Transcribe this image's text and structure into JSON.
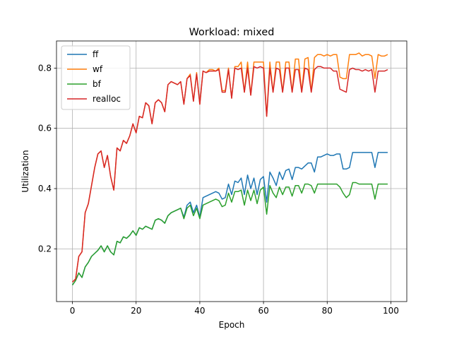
{
  "chart_data": {
    "type": "line",
    "title": "Workload: mixed",
    "xlabel": "Epoch",
    "ylabel": "Utilization",
    "xlim": [
      -5,
      105
    ],
    "ylim": [
      0.025,
      0.89
    ],
    "xticks": [
      0,
      20,
      40,
      60,
      80,
      100
    ],
    "yticks": [
      0.2,
      0.4,
      0.6,
      0.8
    ],
    "grid": true,
    "legend_position": "top-left",
    "series": [
      {
        "name": "ff",
        "color": "#1f77b4",
        "values": [
          0.08,
          0.095,
          0.12,
          0.105,
          0.14,
          0.155,
          0.175,
          0.185,
          0.195,
          0.21,
          0.19,
          0.21,
          0.19,
          0.18,
          0.225,
          0.22,
          0.24,
          0.235,
          0.245,
          0.26,
          0.245,
          0.27,
          0.265,
          0.275,
          0.27,
          0.265,
          0.295,
          0.3,
          0.295,
          0.285,
          0.31,
          0.32,
          0.325,
          0.33,
          0.335,
          0.305,
          0.345,
          0.355,
          0.32,
          0.345,
          0.305,
          0.37,
          0.375,
          0.38,
          0.385,
          0.39,
          0.385,
          0.365,
          0.37,
          0.415,
          0.38,
          0.425,
          0.42,
          0.435,
          0.38,
          0.445,
          0.4,
          0.435,
          0.38,
          0.43,
          0.44,
          0.355,
          0.455,
          0.435,
          0.41,
          0.455,
          0.43,
          0.46,
          0.465,
          0.43,
          0.47,
          0.47,
          0.465,
          0.475,
          0.485,
          0.485,
          0.455,
          0.505,
          0.505,
          0.51,
          0.515,
          0.51,
          0.51,
          0.515,
          0.515,
          0.465,
          0.465,
          0.47,
          0.52,
          0.52,
          0.52,
          0.52,
          0.52,
          0.52,
          0.52,
          0.47,
          0.52,
          0.52,
          0.52,
          0.52
        ]
      },
      {
        "name": "wf",
        "color": "#ff7f0e",
        "values": [
          0.09,
          0.1,
          0.175,
          0.19,
          0.32,
          0.35,
          0.41,
          0.47,
          0.515,
          0.525,
          0.47,
          0.51,
          0.44,
          0.395,
          0.535,
          0.525,
          0.56,
          0.55,
          0.575,
          0.615,
          0.585,
          0.64,
          0.635,
          0.685,
          0.675,
          0.615,
          0.685,
          0.695,
          0.685,
          0.655,
          0.745,
          0.755,
          0.75,
          0.745,
          0.755,
          0.68,
          0.765,
          0.78,
          0.69,
          0.785,
          0.68,
          0.79,
          0.785,
          0.795,
          0.795,
          0.79,
          0.8,
          0.725,
          0.725,
          0.8,
          0.7,
          0.805,
          0.805,
          0.82,
          0.72,
          0.82,
          0.71,
          0.82,
          0.82,
          0.82,
          0.82,
          0.64,
          0.82,
          0.72,
          0.82,
          0.82,
          0.72,
          0.82,
          0.82,
          0.72,
          0.83,
          0.83,
          0.72,
          0.83,
          0.835,
          0.72,
          0.835,
          0.845,
          0.845,
          0.84,
          0.845,
          0.84,
          0.845,
          0.845,
          0.77,
          0.765,
          0.765,
          0.845,
          0.845,
          0.845,
          0.85,
          0.84,
          0.845,
          0.845,
          0.84,
          0.765,
          0.845,
          0.84,
          0.84,
          0.845
        ]
      },
      {
        "name": "bf",
        "color": "#2ca02c",
        "values": [
          0.08,
          0.095,
          0.12,
          0.105,
          0.14,
          0.155,
          0.175,
          0.185,
          0.195,
          0.21,
          0.19,
          0.21,
          0.19,
          0.18,
          0.225,
          0.22,
          0.24,
          0.235,
          0.245,
          0.26,
          0.245,
          0.27,
          0.265,
          0.275,
          0.27,
          0.265,
          0.295,
          0.3,
          0.295,
          0.285,
          0.31,
          0.32,
          0.325,
          0.33,
          0.335,
          0.3,
          0.335,
          0.345,
          0.31,
          0.335,
          0.3,
          0.345,
          0.35,
          0.355,
          0.36,
          0.365,
          0.36,
          0.34,
          0.345,
          0.385,
          0.355,
          0.39,
          0.39,
          0.395,
          0.345,
          0.395,
          0.36,
          0.395,
          0.35,
          0.395,
          0.405,
          0.315,
          0.41,
          0.385,
          0.37,
          0.405,
          0.38,
          0.405,
          0.405,
          0.375,
          0.41,
          0.41,
          0.385,
          0.415,
          0.415,
          0.41,
          0.385,
          0.415,
          0.415,
          0.415,
          0.415,
          0.415,
          0.415,
          0.415,
          0.405,
          0.385,
          0.37,
          0.38,
          0.42,
          0.42,
          0.415,
          0.415,
          0.415,
          0.415,
          0.415,
          0.365,
          0.415,
          0.415,
          0.415,
          0.415
        ]
      },
      {
        "name": "realloc",
        "color": "#d62728",
        "values": [
          0.09,
          0.1,
          0.175,
          0.19,
          0.32,
          0.35,
          0.41,
          0.47,
          0.515,
          0.525,
          0.47,
          0.51,
          0.44,
          0.395,
          0.535,
          0.525,
          0.56,
          0.55,
          0.575,
          0.615,
          0.585,
          0.64,
          0.635,
          0.685,
          0.675,
          0.615,
          0.685,
          0.695,
          0.685,
          0.655,
          0.745,
          0.755,
          0.75,
          0.745,
          0.755,
          0.68,
          0.765,
          0.775,
          0.69,
          0.78,
          0.68,
          0.79,
          0.785,
          0.79,
          0.79,
          0.79,
          0.795,
          0.72,
          0.72,
          0.795,
          0.7,
          0.8,
          0.795,
          0.8,
          0.72,
          0.8,
          0.71,
          0.805,
          0.8,
          0.805,
          0.8,
          0.64,
          0.8,
          0.72,
          0.8,
          0.795,
          0.72,
          0.8,
          0.8,
          0.72,
          0.795,
          0.795,
          0.72,
          0.8,
          0.795,
          0.72,
          0.795,
          0.805,
          0.805,
          0.8,
          0.8,
          0.8,
          0.79,
          0.79,
          0.73,
          0.725,
          0.72,
          0.795,
          0.8,
          0.795,
          0.795,
          0.79,
          0.795,
          0.79,
          0.795,
          0.72,
          0.79,
          0.79,
          0.79,
          0.795
        ]
      }
    ]
  }
}
